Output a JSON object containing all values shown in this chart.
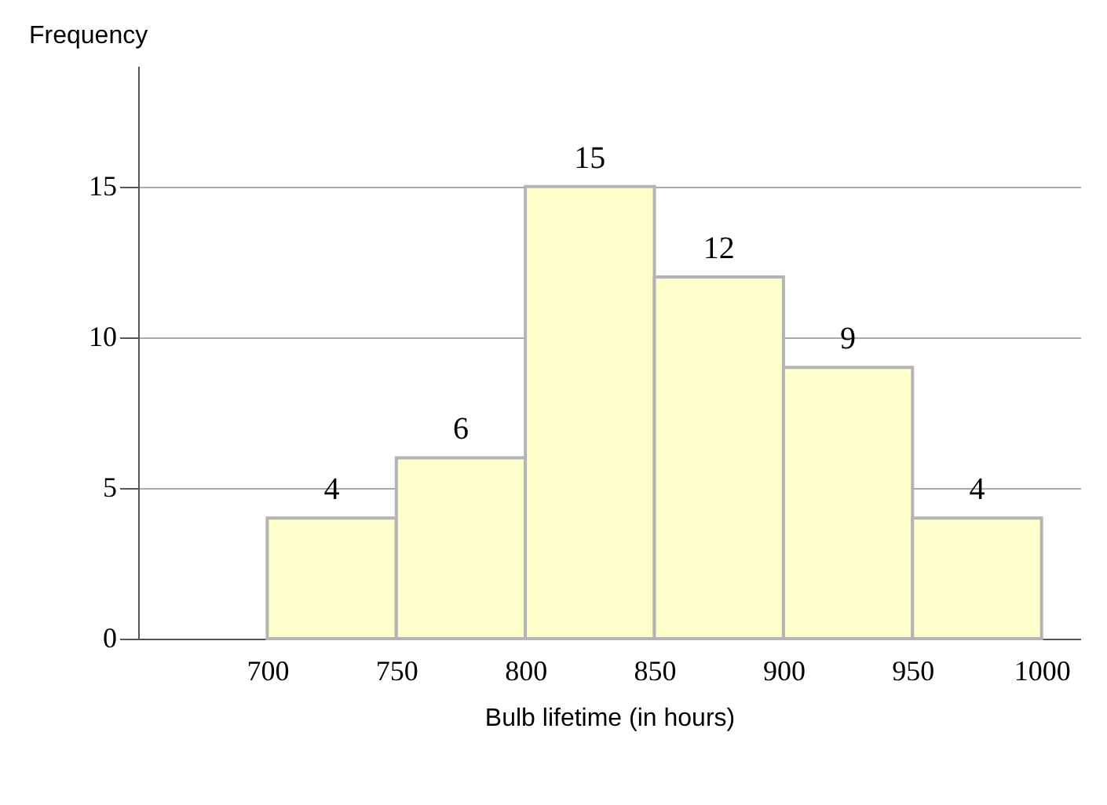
{
  "chart_data": {
    "type": "histogram",
    "xlabel": "Bulb lifetime (in hours)",
    "ylabel": "Frequency",
    "bins": [
      700,
      750,
      800,
      850,
      900,
      950,
      1000
    ],
    "values": [
      4,
      6,
      15,
      12,
      9,
      4
    ],
    "color": "#ffffcc",
    "xlim": [
      650,
      1015
    ],
    "xticks": [
      700,
      750,
      800,
      850,
      900,
      950,
      1000
    ],
    "ylim": [
      0,
      19
    ],
    "yticks": [
      0,
      5,
      10,
      15
    ],
    "grid": "y",
    "data_labels": true
  }
}
